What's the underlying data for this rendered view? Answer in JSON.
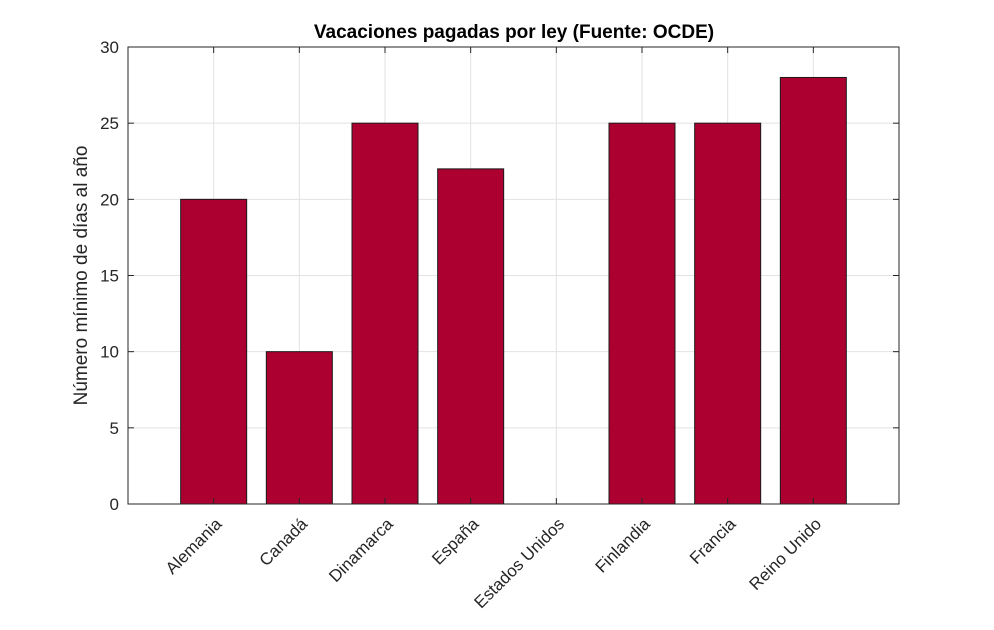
{
  "chart_data": {
    "type": "bar",
    "title": "Vacaciones pagadas por ley (Fuente: OCDE)",
    "xlabel": "",
    "ylabel": "Número mínimo de días al año",
    "categories": [
      "Alemania",
      "Canadá",
      "Dinamarca",
      "España",
      "Estados Unidos",
      "Finlandia",
      "Francia",
      "Reino Unido"
    ],
    "values": [
      20,
      10,
      25,
      22,
      0,
      25,
      25,
      28
    ],
    "ylim": [
      0,
      30
    ],
    "yticks": [
      0,
      5,
      10,
      15,
      20,
      25,
      30
    ],
    "grid": true,
    "bar_color": "#ac0031"
  }
}
